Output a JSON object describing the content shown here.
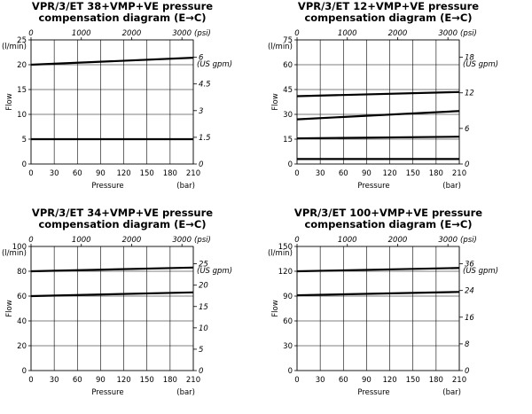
{
  "chart_data": [
    {
      "type": "line",
      "title_line1": "VPR/3/ET 38+VMP+VE pressure",
      "title_line2": "compensation diagram (E→C)",
      "xlabel": "Pressure",
      "x_unit": "(bar)",
      "ylabel": "Flow",
      "y_unit": "(l/min)",
      "top_unit": "(psi)",
      "right_unit": "(US gpm)",
      "x_ticks": [
        "0",
        "30",
        "60",
        "90",
        "120",
        "150",
        "180",
        "210"
      ],
      "y_ticks": [
        "0",
        "5",
        "10",
        "15",
        "20",
        "25"
      ],
      "top_ticks": [
        "0",
        "1000",
        "2000",
        "3000"
      ],
      "right_ticks": [
        "0",
        "1.5",
        "3",
        "4.5",
        "6"
      ],
      "xlim": [
        0,
        210
      ],
      "ylim": [
        0,
        25
      ],
      "grid": true,
      "series": [
        {
          "x": [
            0,
            210
          ],
          "values": [
            20,
            21.4
          ]
        },
        {
          "x": [
            0,
            210
          ],
          "values": [
            5,
            5
          ]
        }
      ]
    },
    {
      "type": "line",
      "title_line1": "VPR/3/ET 12+VMP+VE pressure",
      "title_line2": "compensation diagram (E→C)",
      "xlabel": "Pressure",
      "x_unit": "(bar)",
      "ylabel": "Flow",
      "y_unit": "(l/min)",
      "top_unit": "(psi)",
      "right_unit": "(US gpm)",
      "x_ticks": [
        "0",
        "30",
        "60",
        "90",
        "120",
        "150",
        "180",
        "210"
      ],
      "y_ticks": [
        "0",
        "15",
        "30",
        "45",
        "60",
        "75"
      ],
      "top_ticks": [
        "0",
        "1000",
        "2000",
        "3000"
      ],
      "right_ticks": [
        "0",
        "6",
        "12",
        "18"
      ],
      "xlim": [
        0,
        210
      ],
      "ylim": [
        0,
        75
      ],
      "grid": true,
      "series": [
        {
          "x": [
            0,
            210
          ],
          "values": [
            41,
            43.5
          ]
        },
        {
          "x": [
            0,
            210
          ],
          "values": [
            27,
            32
          ]
        },
        {
          "x": [
            0,
            210
          ],
          "values": [
            15.5,
            16.5
          ]
        },
        {
          "x": [
            0,
            210
          ],
          "values": [
            3,
            3
          ]
        }
      ]
    },
    {
      "type": "line",
      "title_line1": "VPR/3/ET 34+VMP+VE pressure",
      "title_line2": "compensation diagram (E→C)",
      "xlabel": "Pressure",
      "x_unit": "(bar)",
      "ylabel": "Flow",
      "y_unit": "(l/min)",
      "top_unit": "(psi)",
      "right_unit": "(US gpm)",
      "x_ticks": [
        "0",
        "30",
        "60",
        "90",
        "120",
        "150",
        "180",
        "210"
      ],
      "y_ticks": [
        "0",
        "20",
        "40",
        "60",
        "80",
        "100"
      ],
      "top_ticks": [
        "0",
        "1000",
        "2000",
        "3000"
      ],
      "right_ticks": [
        "0",
        "5",
        "10",
        "15",
        "20",
        "25"
      ],
      "xlim": [
        0,
        210
      ],
      "ylim": [
        0,
        100
      ],
      "grid": true,
      "series": [
        {
          "x": [
            0,
            210
          ],
          "values": [
            80,
            83
          ]
        },
        {
          "x": [
            0,
            210
          ],
          "values": [
            60,
            63
          ]
        }
      ]
    },
    {
      "type": "line",
      "title_line1": "VPR/3/ET 100+VMP+VE pressure",
      "title_line2": "compensation diagram (E→C)",
      "xlabel": "Pressure",
      "x_unit": "(bar)",
      "ylabel": "Flow",
      "y_unit": "(l/min)",
      "top_unit": "(psi)",
      "right_unit": "(US gpm)",
      "x_ticks": [
        "0",
        "30",
        "60",
        "90",
        "120",
        "150",
        "180",
        "210"
      ],
      "y_ticks": [
        "0",
        "30",
        "60",
        "90",
        "120",
        "150"
      ],
      "top_ticks": [
        "0",
        "1000",
        "2000",
        "3000"
      ],
      "right_ticks": [
        "0",
        "8",
        "16",
        "24",
        "36"
      ],
      "xlim": [
        0,
        210
      ],
      "ylim": [
        0,
        150
      ],
      "grid": true,
      "series": [
        {
          "x": [
            0,
            210
          ],
          "values": [
            120,
            124
          ]
        },
        {
          "x": [
            0,
            210
          ],
          "values": [
            91,
            95
          ]
        }
      ]
    }
  ]
}
